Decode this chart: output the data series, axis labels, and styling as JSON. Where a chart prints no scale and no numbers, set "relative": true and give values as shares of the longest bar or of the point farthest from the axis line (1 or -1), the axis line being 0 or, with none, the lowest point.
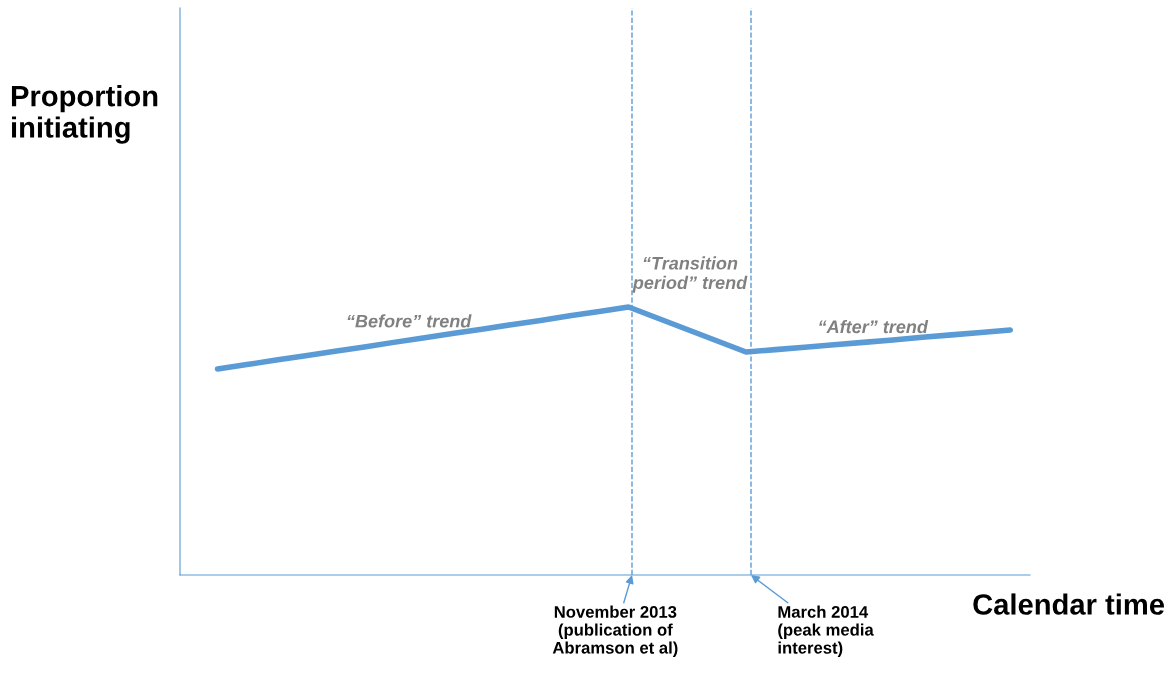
{
  "chart_data": {
    "type": "line",
    "relative": true,
    "xlabel": "Calendar time",
    "categories": [
      null,
      null,
      null,
      null,
      null,
      null,
      null,
      null,
      null,
      null,
      null,
      null,
      null,
      null,
      null,
      null,
      null,
      null,
      null,
      null,
      null,
      null,
      null,
      null,
      null,
      null,
      null,
      null
    ],
    "series": [
      {
        "color": "#5b9bd5",
        "values": [
          0.769,
          0.785,
          0.802,
          0.818,
          0.835,
          0.851,
          0.868,
          0.884,
          0.901,
          0.917,
          0.934,
          0.95,
          0.967,
          0.983,
          1,
          0.958,
          0.916,
          0.874,
          0.832,
          0.841,
          0.85,
          0.859,
          0.868,
          0.877,
          0.887,
          0.896,
          0.905,
          0.914
        ]
      }
    ],
    "annotations": [
      "Proportion\ninitiating",
      "“Before” trend",
      "“Transition\nperiod” trend",
      "“After” trend",
      "November 2013\n(publication of\nAbramson et al)",
      "March 2014\n(peak media\ninterest)"
    ],
    "tick_labels": false,
    "marker": "none",
    "line_style": "solid"
  }
}
